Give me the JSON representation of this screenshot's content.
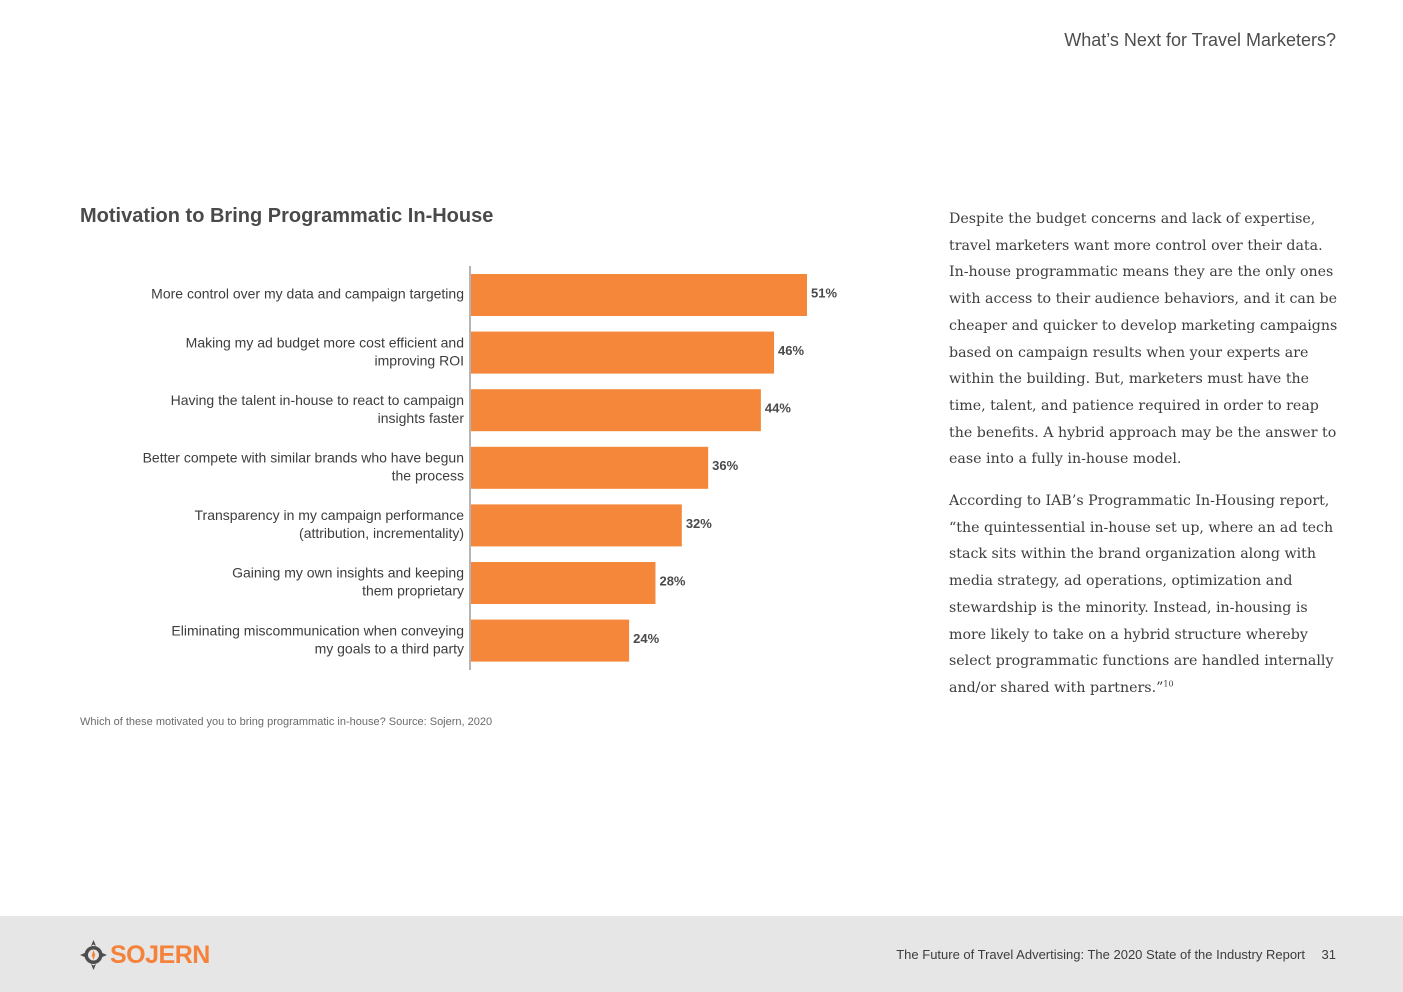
{
  "header": {
    "title": "What’s Next for Travel Marketers?"
  },
  "chart_data": {
    "type": "bar",
    "orientation": "horizontal",
    "title": "Motivation to Bring Programmatic In-House",
    "categories": [
      [
        "More control over my data and campaign targeting"
      ],
      [
        "Making my ad budget more cost efficient and",
        "improving ROI"
      ],
      [
        "Having the talent in-house to react to campaign",
        "insights faster"
      ],
      [
        "Better compete with similar brands who have begun",
        "the process"
      ],
      [
        "Transparency in my campaign performance",
        "(attribution, incrementality)"
      ],
      [
        "Gaining my own insights and keeping",
        "them proprietary"
      ],
      [
        "Eliminating miscommunication when conveying",
        "my goals to a third party"
      ]
    ],
    "values": [
      51,
      46,
      44,
      36,
      32,
      28,
      24
    ],
    "value_labels": [
      "51%",
      "46%",
      "44%",
      "36%",
      "32%",
      "28%",
      "24%"
    ],
    "unit": "%",
    "xlim": [
      0,
      100
    ],
    "bar_color": "#f5873a",
    "grid": false
  },
  "source_note": "Which of these motivated you to bring programmatic in-house? Source: Sojern, 2020",
  "body": {
    "paragraph1": "Despite the budget concerns and lack of expertise, travel marketers want more control over their data. In-house programmatic means they are the only ones with access to their audience behaviors, and it can be cheaper and quicker to develop marketing campaigns based on campaign results when your experts are within the building. But, marketers must have the time, talent, and patience required in order to reap the benefits. A hybrid approach may be the answer to ease into a fully in-house model.",
    "paragraph2": "According to IAB’s Programmatic In-Housing report, “the quintessential in-house set up, where an ad tech stack sits within the brand organization along with media strategy, ad operations, optimization and stewardship is the minority. Instead, in-housing is more likely to take on a hybrid structure whereby select programmatic functions are handled internally and/or shared with partners.”",
    "footnote": "10"
  },
  "footer": {
    "logo": "SOJERN",
    "report_title": "The Future of Travel Advertising: The 2020 State of the Industry Report",
    "page_number": "31"
  }
}
